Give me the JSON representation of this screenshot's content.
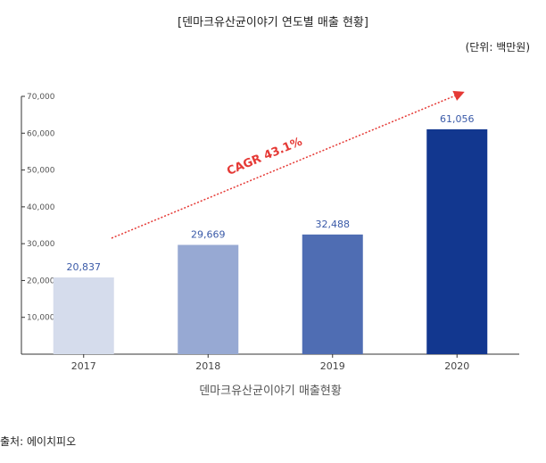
{
  "title": "[덴마크유산균이야기 연도별 매출 현황]",
  "unit": "(단위: 백만원)",
  "source": "출처: 에이치피오",
  "chart_data": {
    "type": "bar",
    "categories": [
      "2017",
      "2018",
      "2019",
      "2020"
    ],
    "values": [
      20837,
      29669,
      32488,
      61056
    ],
    "value_labels": [
      "20,837",
      "29,669",
      "32,488",
      "61,056"
    ],
    "bar_colors": [
      "#d5dcec",
      "#97a9d3",
      "#4f6db3",
      "#12378f"
    ],
    "xlabel": "덴마크유산균이야기 매출현황",
    "ylabel": "",
    "ylim": [
      0,
      70000
    ],
    "yticks": [
      10000,
      20000,
      30000,
      40000,
      50000,
      60000,
      70000
    ],
    "ytick_labels": [
      "10,000",
      "20,000",
      "30,000",
      "40,000",
      "50,000",
      "60,000",
      "70,000"
    ],
    "annotation": "CAGR 43.1%",
    "annotation_color": "#e53935",
    "grid": false
  }
}
